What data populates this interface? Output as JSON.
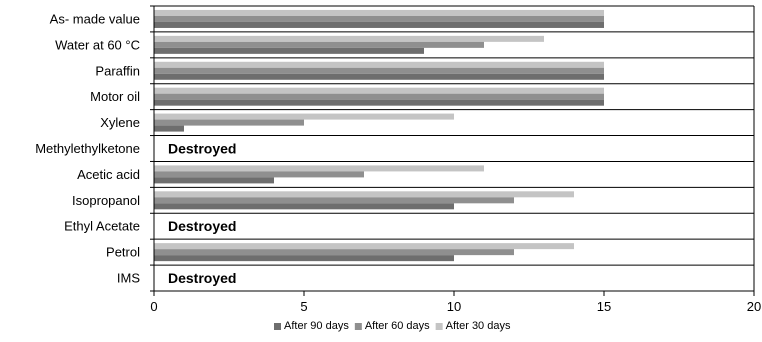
{
  "chart_data": {
    "type": "bar",
    "orientation": "horizontal",
    "title": "",
    "xlabel": "",
    "ylabel": "",
    "xlim": [
      0,
      20
    ],
    "x_ticks": [
      0,
      5,
      10,
      15,
      20
    ],
    "grid": "horizontal row separators",
    "legend_position": "bottom",
    "categories": [
      "As- made value",
      "Water at 60 °C",
      "Paraffin",
      "Motor oil",
      "Xylene",
      "Methylethylketone",
      "Acetic acid",
      "Isopropanol",
      "Ethyl Acetate",
      "Petrol",
      "IMS"
    ],
    "series": [
      {
        "name": "After 90 days",
        "color": "#6e6e6e",
        "values": [
          15,
          9,
          15,
          15,
          1,
          null,
          4,
          10,
          null,
          10,
          null
        ]
      },
      {
        "name": "After 60 days",
        "color": "#8f8f8f",
        "values": [
          15,
          11,
          15,
          15,
          5,
          null,
          7,
          12,
          null,
          12,
          null
        ]
      },
      {
        "name": "After 30 days",
        "color": "#c4c4c4",
        "values": [
          15,
          13,
          15,
          15,
          10,
          null,
          11,
          14,
          null,
          14,
          null
        ]
      }
    ],
    "annotations": [
      {
        "category": "Methylethylketone",
        "text": "Destroyed"
      },
      {
        "category": "Ethyl Acetate",
        "text": "Destroyed"
      },
      {
        "category": "IMS",
        "text": "Destroyed"
      }
    ]
  }
}
